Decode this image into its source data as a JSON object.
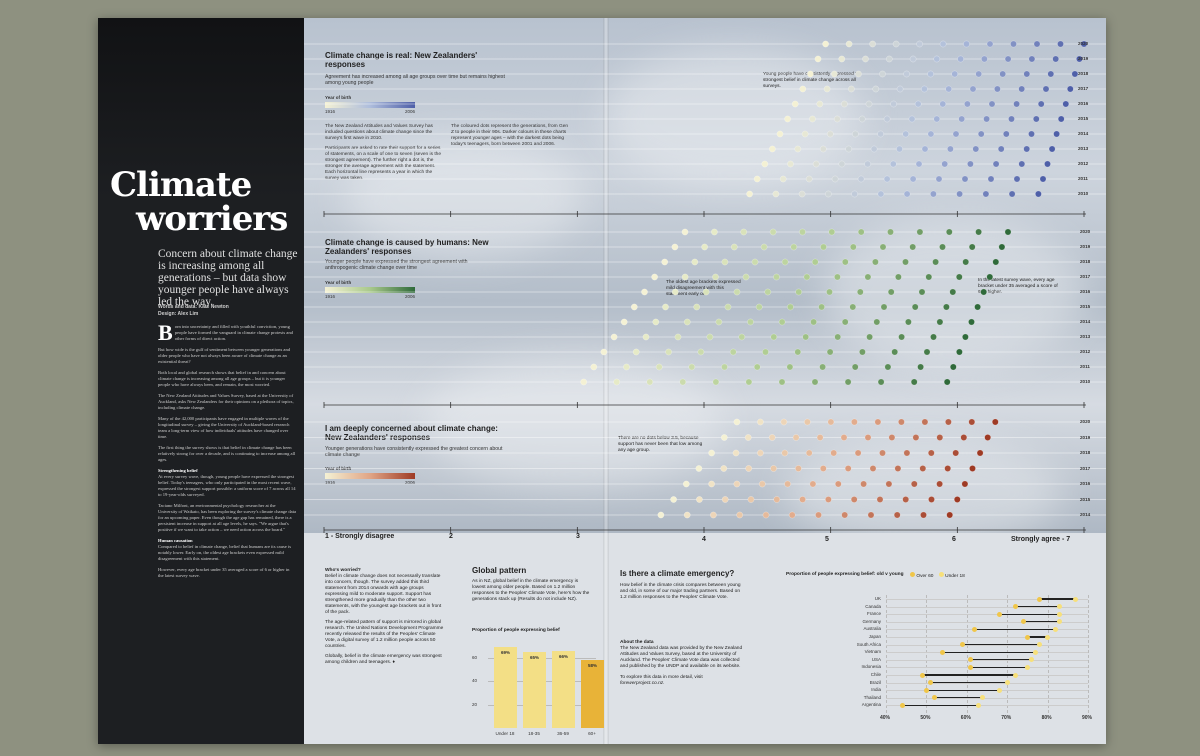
{
  "left": {
    "title_line1": "Climate",
    "title_line2": "worriers",
    "standfirst": "Concern about climate change is increasing among all generations – but data show younger people have always led the way.",
    "credits_words": "Words and data: Kate Newton",
    "credits_design": "Design: Alex Lim",
    "dropcap": "B",
    "p1": "orn into uncertainty and filled with youthful conviction, young people have formed the vanguard in climate change protests and other forms of direct action.",
    "p2": "But how wide is the gulf of sentiment between younger generations and older people who have not always been aware of climate change as an existential threat?",
    "p3": "Both local and global research shows that belief in and concern about climate change is increasing among all age groups – but it is younger people who have always been, and remain, the most worried.",
    "p4": "The New Zealand Attitudes and Values Survey, based at the University of Auckland, asks New Zealanders for their opinions on a plethora of topics, including climate change.",
    "p5": "Many of the 42,000 participants have engaged in multiple waves of the longitudinal survey – giving the University of Auckland-based research team a long-term view of how individuals' attitudes have changed over time.",
    "p6": "The first thing the survey shows is that belief in climate change has been relatively strong for over a decade, and is continuing to increase among all ages.",
    "sub1": "Strengthening belief",
    "p7": "At every survey wave, though, young people have expressed the strongest belief. Today's teenagers, who only participated in the most recent wave, expressed the strongest support possible: a uniform score of 7 across all 14 to 19-year-olds surveyed.",
    "p8": "Taciano Milfont, an environmental psychology researcher at the University of Waikato, has been exploring the survey's climate change data for an upcoming paper. Even though the age gap has remained, there is a persistent increase in support at all age levels, he says. \"We argue that's positive if we want to take action – we need action across the board.\"",
    "sub2": "Human causation",
    "p9": "Compared to belief in climate change, belief that humans are its cause is notably lower. Early on, the oldest age brackets even expressed mild disagreement with this statement.",
    "p10": "However, every age bracket under 35 averaged a score of 6 or higher in the latest survey wave."
  },
  "section1": {
    "head": "Climate change is real: New Zealanders' responses",
    "dek": "Agreement has increased among all age groups over time but remains highest among young people",
    "legend_title": "Year of birth",
    "legend_start": "1916",
    "legend_end": "2006",
    "para_a": "The New Zealand Attitudes and Values Survey has included questions about climate change since the survey's first wave in 2010.",
    "para_b": "Participants are asked to rate their support for a series of statements, on a scale of one to seven (seven is the strongest agreement). The further right a dot is, the stronger the average agreement with the statement. Each horizontal line represents a year in which the survey was taken.",
    "para_c": "The coloured dots represent the generations, from Gen Z to people in their 90s. Darker colours in these charts represent younger ages – with the darkest dots being today's teenagers, born between 2001 and 2006.",
    "annot": "Young people have consistently expressed the strongest belief in climate change across all surveys.",
    "years": [
      "2020",
      "2019",
      "2018",
      "2017",
      "2016",
      "2015",
      "2014",
      "2013",
      "2012",
      "2011",
      "2010"
    ]
  },
  "section2": {
    "head": "Climate change is caused by humans: New Zealanders' responses",
    "dek": "Younger people have expressed the strongest agreement with anthropogenic climate change over time",
    "legend_title": "Year of birth",
    "legend_start": "1916",
    "legend_end": "2006",
    "annot_left": "The oldest age brackets expressed mild disagreement with this statement early on.",
    "annot_right": "In the latest survey wave, every age bracket under 35 averaged a score of 6 or higher.",
    "years": [
      "2020",
      "2019",
      "2018",
      "2017",
      "2016",
      "2015",
      "2014",
      "2013",
      "2012",
      "2011",
      "2010"
    ]
  },
  "section3": {
    "head": "I am deeply concerned about climate change: New Zealanders' responses",
    "dek": "Younger generations have consistently expressed the greatest concern about climate change",
    "legend_title": "Year of birth",
    "legend_start": "1916",
    "legend_end": "2006",
    "annot": "There are no dots below 3.5, because support has never been that low among any age group.",
    "years": [
      "2020",
      "2019",
      "2018",
      "2017",
      "2016",
      "2015",
      "2014"
    ]
  },
  "axis": {
    "t1": "1 - Strongly disagree",
    "t2": "2",
    "t3": "3",
    "t4": "4",
    "t5": "5",
    "t6": "6",
    "t7": "Strongly agree - 7"
  },
  "worried": {
    "head": "Who's worried?",
    "p1": "Belief in climate change does not necessarily translate into concern, though. The survey added this third statement from 2014 onwards with age groups expressing mild to moderate support. Support has strengthened more gradually than the other two statements, with the youngest age brackets out in front of the pack.",
    "p2": "The age-related pattern of support is mirrored in global research. The United Nations Development Programme recently released the results of the Peoples' Climate Vote, a digital survey of 1.2 million people across 50 countries.",
    "p3": "Globally, belief in the climate emergency was strongest among children and teenagers. ♦"
  },
  "global": {
    "head": "Global pattern",
    "dek": "As in NZ, global belief in the climate emergency is lowest among older people. Based on 1.2 million responses to the Peoples' Climate Vote, here's how the generations stack up (Results do not include NZ).",
    "chart_title": "Proportion of people expressing belief"
  },
  "emergency": {
    "head": "Is there a climate emergency?",
    "dek": "How belief in the climate crisis compares between young and old, in some of our major trading partners. Based on 1.2 million responses to the Peoples' Climate Vote.",
    "about_head": "About the data",
    "about": "The New Zealand data was provided by the New Zealand Attitudes and Values Survey, based at the University of Auckland. The Peoples' Climate Vote data was collected and published by the UNDP and available on its website.",
    "explore": "To explore this data in more detail, visit",
    "explore_url": "forewerproject.co.nz.",
    "chart_title": "Proportion of people expressing belief: old v young",
    "legend_old": "Over 60",
    "legend_young": "Under 18"
  },
  "chart_data": [
    {
      "type": "bar",
      "title": "Proportion of people expressing belief",
      "categories": [
        "Under 18",
        "18-35",
        "36-59",
        "60+"
      ],
      "values": [
        69,
        65,
        66,
        58
      ],
      "value_labels": [
        "69%",
        "65%",
        "66%",
        "58%"
      ],
      "ylim": [
        0,
        70
      ],
      "yticks": [
        20,
        40,
        60
      ],
      "colors": [
        "#f3df86",
        "#f3df86",
        "#f3df86",
        "#e8b338"
      ]
    },
    {
      "type": "scatter",
      "title": "Proportion of people expressing belief: old v young",
      "categories": [
        "UK",
        "Canada",
        "France",
        "Germany",
        "Australia",
        "Japan",
        "South Africa",
        "Vietnam",
        "USA",
        "Indonesia",
        "Chile",
        "Brazil",
        "India",
        "Thailand",
        "Argentina"
      ],
      "series": [
        {
          "name": "Over 60",
          "values": [
            78,
            72,
            68,
            74,
            62,
            75,
            59,
            54,
            61,
            61,
            49,
            51,
            50,
            52,
            44
          ]
        },
        {
          "name": "Under 18",
          "values": [
            87,
            83,
            83,
            83,
            82,
            80,
            78,
            77,
            76,
            75,
            72,
            70,
            68,
            64,
            63
          ]
        }
      ],
      "xlim": [
        40,
        90
      ],
      "xticks": [
        "40%",
        "50%",
        "60%",
        "70%",
        "80%",
        "90%"
      ],
      "colors": {
        "Over 60": "#f0c64a",
        "Under 18": "#f7e07a"
      }
    }
  ]
}
